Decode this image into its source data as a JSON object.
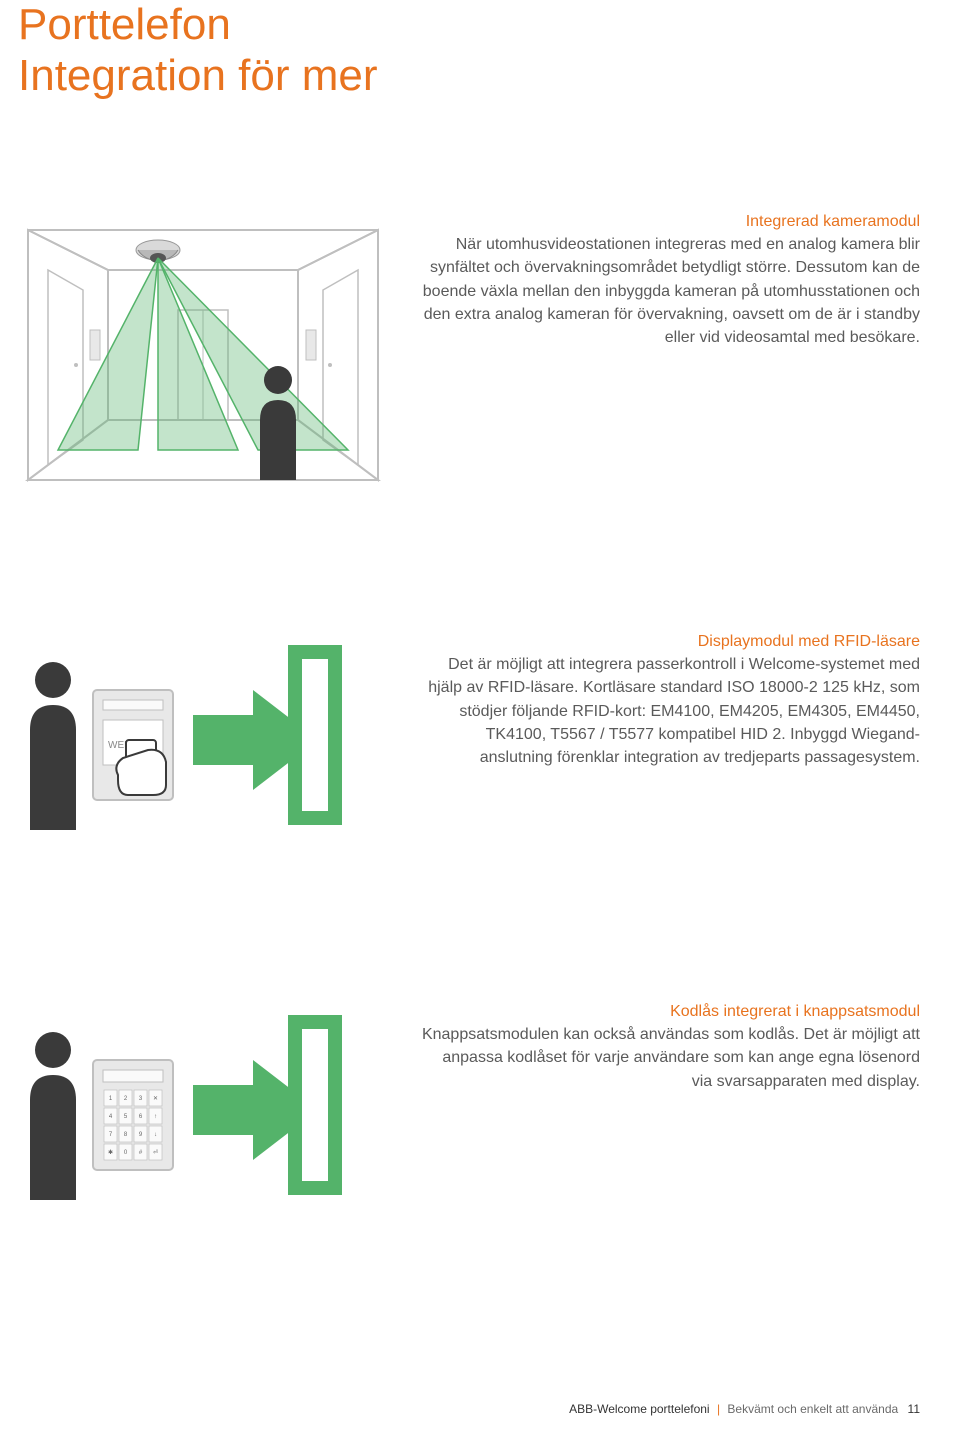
{
  "colors": {
    "accent_orange": "#e8731f",
    "text_body": "#5a5a5a",
    "illus_border": "#bfbfbf",
    "illus_green": "#54b36a",
    "illus_green_light": "rgba(84,179,106,0.35)",
    "illus_dark": "#3a3a3a",
    "illus_grey": "#d9d9d9"
  },
  "title": {
    "line1": "Porttelefon",
    "line2": "Integration för mer"
  },
  "section1": {
    "heading": "Integrerad kameramodul",
    "body": "När utomhusvideostationen integreras med en analog kamera blir synfältet och övervakningsområdet betydligt större. Dessutom kan de boende växla mellan den inbyggda kameran på utomhusstationen och den extra analog kameran för övervakning, oavsett om de är i standby eller vid videosamtal med besökare."
  },
  "section2": {
    "heading": "Displaymodul med RFID-läsare",
    "body": "Det är möjligt att integrera passerkontroll i Welcome-systemet med hjälp av RFID-läsare. Kortläsare standard ISO 18000-2 125 kHz, som stödjer följande RFID-kort: EM4100, EM4205, EM4305, EM4450, TK4100, T5567 / T5577 kompatibel HID 2. Inbyggd Wiegand-anslutning förenklar integration av tredjeparts passagesystem."
  },
  "section3": {
    "heading": "Kodlås integrerat i knappsatsmodul",
    "body": "Knappsatsmodulen kan också användas som kodlås. Det är möjligt att anpassa kodlåset för varje användare som kan ange egna lösenord via svarsapparaten med display."
  },
  "keypad_rows": [
    [
      "1",
      "2",
      "3",
      "✕"
    ],
    [
      "4",
      "5",
      "6",
      "↑"
    ],
    [
      "7",
      "8",
      "9",
      "↓"
    ],
    [
      "✱",
      "0",
      "#",
      "⏎"
    ]
  ],
  "display_label": "WEL",
  "footer": {
    "brand": "ABB-Welcome porttelefoni",
    "tagline": "Bekvämt och enkelt att använda",
    "page": "11"
  }
}
